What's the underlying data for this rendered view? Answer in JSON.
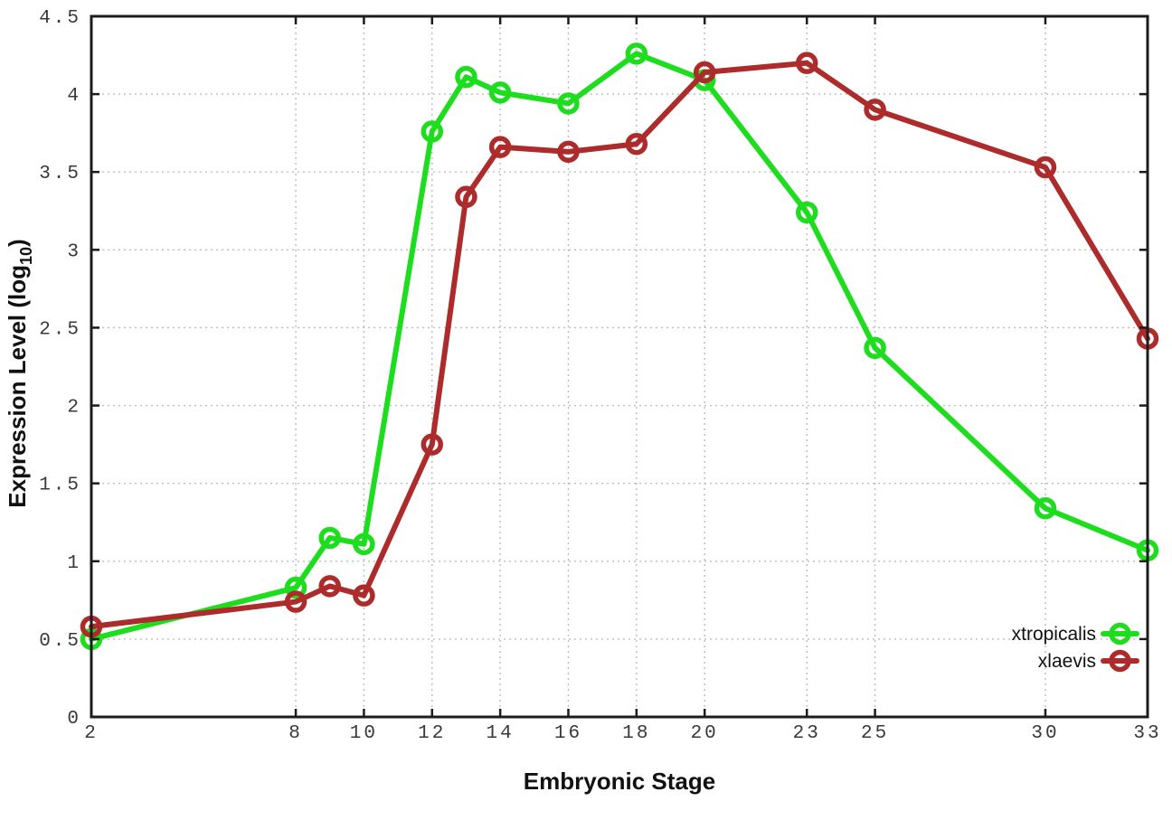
{
  "chart_data": {
    "type": "line",
    "title": "",
    "xlabel": "Embryonic Stage",
    "ylabel": "Expression Level (log10)",
    "ylabel_parts": [
      "Expression Level (log",
      "10",
      ")"
    ],
    "x": [
      2,
      8,
      9,
      10,
      12,
      13,
      14,
      16,
      18,
      20,
      23,
      25,
      30,
      33
    ],
    "series": [
      {
        "name": "xtropicalis",
        "color": "#1edc1e",
        "values": [
          0.5,
          0.83,
          1.15,
          1.11,
          3.76,
          4.11,
          4.01,
          3.94,
          4.26,
          4.09,
          3.24,
          2.37,
          1.34,
          1.07
        ]
      },
      {
        "name": "xlaevis",
        "color": "#ad2b2b",
        "values": [
          0.58,
          0.74,
          0.84,
          0.78,
          1.75,
          3.34,
          3.66,
          3.63,
          3.68,
          4.14,
          4.2,
          3.9,
          3.53,
          2.43
        ]
      }
    ],
    "xlim": [
      2,
      33
    ],
    "ylim": [
      0,
      4.5
    ],
    "xtick_values": [
      2,
      8,
      10,
      12,
      14,
      16,
      18,
      20,
      23,
      25,
      30,
      33
    ],
    "xtick_labels": [
      "2",
      "8",
      "10",
      "12",
      "14",
      "16",
      "18",
      "20",
      "23",
      "25",
      "30",
      "33"
    ],
    "ytick_values": [
      0,
      0.5,
      1,
      1.5,
      2,
      2.5,
      3,
      3.5,
      4,
      4.5
    ],
    "ytick_labels": [
      "0",
      "0.5",
      "1",
      "1.5",
      "2",
      "2.5",
      "3",
      "3.5",
      "4",
      "4.5"
    ],
    "grid": true,
    "grid_style": "dotted",
    "marker": "open-circle",
    "legend_position": "bottom-right",
    "colors": {
      "border": "#1c1c1c",
      "gridline": "#bcbcbc",
      "tick_text": "#383838",
      "title_text": "#111111",
      "background": "#ffffff"
    }
  }
}
